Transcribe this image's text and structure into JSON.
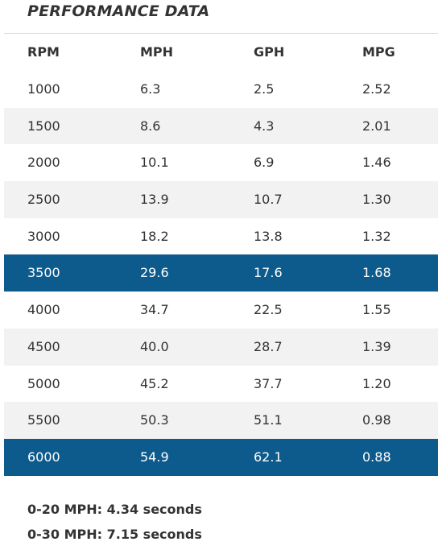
{
  "title": "PERFORMANCE DATA",
  "table": {
    "header": [
      "RPM",
      "MPH",
      "GPH",
      "MPG"
    ],
    "rows": [
      [
        "1000",
        "6.3",
        "2.5",
        "2.52"
      ],
      [
        "1500",
        "8.6",
        "4.3",
        "2.01"
      ],
      [
        "2000",
        "10.1",
        "6.9",
        "1.46"
      ],
      [
        "2500",
        "13.9",
        "10.7",
        "1.30"
      ],
      [
        "3000",
        "18.2",
        "13.8",
        "1.32"
      ],
      [
        "3500",
        "29.6",
        "17.6",
        "1.68"
      ],
      [
        "4000",
        "34.7",
        "22.5",
        "1.55"
      ],
      [
        "4500",
        "40.0",
        "28.7",
        "1.39"
      ],
      [
        "5000",
        "45.2",
        "37.7",
        "1.20"
      ],
      [
        "5500",
        "50.3",
        "51.1",
        "0.98"
      ],
      [
        "6000",
        "54.9",
        "62.1",
        "0.88"
      ]
    ],
    "highlighted_rows": [
      5,
      10
    ]
  },
  "notes": [
    "0-20 MPH: 4.34 seconds",
    "0-30 MPH: 7.15 seconds"
  ]
}
